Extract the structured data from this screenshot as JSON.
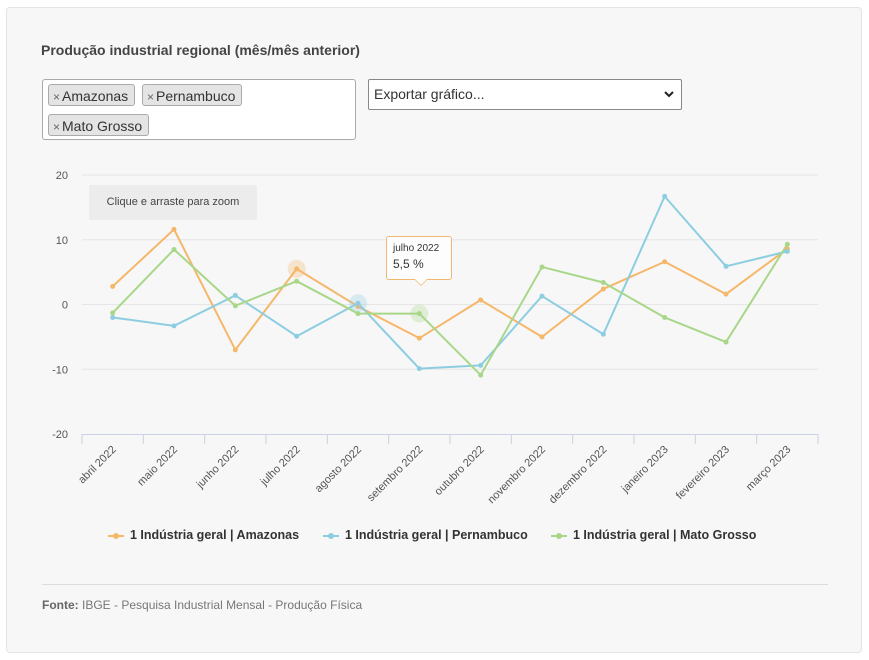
{
  "title": "Produção industrial regional (mês/mês anterior)",
  "filter": {
    "remove_symbol": "×",
    "chips": [
      "Amazonas",
      "Pernambuco",
      "Mato Grosso"
    ]
  },
  "export_select": {
    "selected": "Exportar gráfico...",
    "chevron": "⌄"
  },
  "zoom_hint": "Clique e arraste para zoom",
  "tooltip": {
    "label": "julho 2022",
    "value": "5,5 %"
  },
  "legend": [
    {
      "label": "1 Indústria geral | Amazonas",
      "color": "#f5b76a"
    },
    {
      "label": "1 Indústria geral | Pernambuco",
      "color": "#8dcde2"
    },
    {
      "label": "1 Indústria geral | Mato Grosso",
      "color": "#a9d78a"
    }
  ],
  "source": {
    "prefix": "Fonte:",
    "text": "IBGE - Pesquisa Industrial Mensal - Produção Física"
  },
  "chart_data": {
    "type": "line",
    "x": [
      "abril 2022",
      "maio 2022",
      "junho 2022",
      "julho 2022",
      "agosto 2022",
      "setembro 2022",
      "outubro 2022",
      "novembro 2022",
      "dezembro 2022",
      "janeiro 2023",
      "fevereiro 2023",
      "março 2023"
    ],
    "y_ticks": [
      20,
      10,
      0,
      -10,
      -20
    ],
    "ylim": [
      -20,
      20
    ],
    "grid": true,
    "legend_position": "bottom",
    "series": [
      {
        "name": "1 Indústria geral | Amazonas",
        "color": "#f5b76a",
        "values": [
          2.8,
          11.6,
          -7.0,
          5.5,
          -0.3,
          -5.2,
          0.7,
          -5.0,
          2.4,
          6.6,
          1.6,
          8.6
        ],
        "highlight_index": 3
      },
      {
        "name": "1 Indústria geral | Pernambuco",
        "color": "#8dcde2",
        "values": [
          -2.0,
          -3.3,
          1.4,
          -4.9,
          0.2,
          -9.9,
          -9.4,
          1.3,
          -4.6,
          16.7,
          5.9,
          8.2
        ],
        "highlight_index": 4
      },
      {
        "name": "1 Indústria geral | Mato Grosso",
        "color": "#a9d78a",
        "values": [
          -1.3,
          8.5,
          -0.2,
          3.6,
          -1.4,
          -1.4,
          -10.9,
          5.8,
          3.4,
          -2.0,
          -5.8,
          9.3
        ],
        "highlight_index": 5
      }
    ]
  }
}
